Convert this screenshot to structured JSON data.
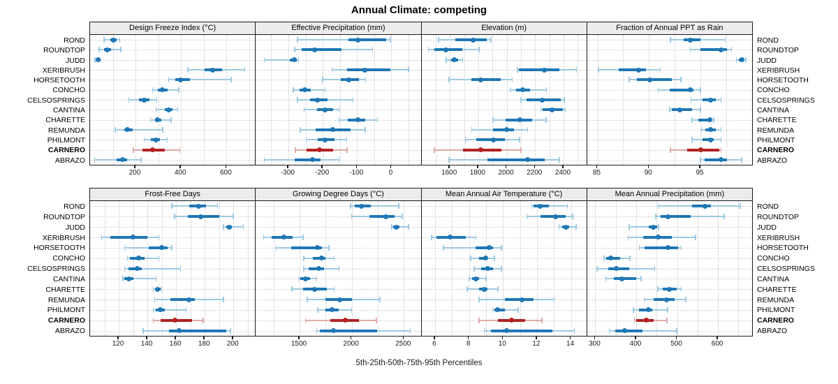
{
  "title": "Annual Climate: competing",
  "caption": "5th-25th-50th-75th-95th Percentiles",
  "colors": {
    "normal": "#1f77b4",
    "normal_light": "#9ec9e2",
    "highlight": "#b22222",
    "highlight_light": "#e0a8a8",
    "grid": "#c6c6c6",
    "panel_border": "#1a1a1a",
    "header_bg": "#ececec"
  },
  "chart_data": {
    "type": "dot-interval percentile chart (5th-25th-50th-75th-95th), 2 rows x 4 panels",
    "percentiles": [
      5,
      25,
      50,
      75,
      95
    ],
    "legend_position": "none",
    "grid": "dotted vertical at minor ticks, dotted horizontal per site row",
    "sites": [
      "ROND",
      "ROUNDTOP",
      "JUDD",
      "XERIBRUSH",
      "HORSETOOTH",
      "CONCHO",
      "CELSOSPRINGS",
      "CANTINA",
      "CHARETTE",
      "REMUNDA",
      "PHILMONT",
      "CARNERO",
      "ABRAZO"
    ],
    "highlight_site": "CARNERO",
    "panels": [
      {
        "title": "Design Freeze Index (°C)",
        "domain": [
          0,
          725
        ],
        "ticks": [
          200,
          400,
          600
        ],
        "grid": [
          100,
          200,
          300,
          400,
          500,
          600,
          700
        ],
        "values": [
          [
            62,
            88,
            103,
            116,
            131
          ],
          [
            40,
            60,
            75,
            92,
            135
          ],
          [
            22,
            28,
            34,
            40,
            48
          ],
          [
            430,
            505,
            540,
            580,
            680
          ],
          [
            345,
            375,
            398,
            440,
            620
          ],
          [
            275,
            297,
            318,
            340,
            390
          ],
          [
            170,
            215,
            238,
            262,
            293
          ],
          [
            290,
            330,
            345,
            362,
            386
          ],
          [
            265,
            285,
            297,
            312,
            357
          ],
          [
            110,
            150,
            165,
            188,
            320
          ],
          [
            238,
            268,
            289,
            306,
            339
          ],
          [
            190,
            230,
            275,
            330,
            395
          ],
          [
            20,
            118,
            143,
            162,
            225
          ]
        ]
      },
      {
        "title": "Effective Precipitation (mm)",
        "domain": [
          -395,
          85
        ],
        "ticks": [
          -300,
          -200,
          -100,
          0
        ],
        "grid": [
          -350,
          -300,
          -250,
          -200,
          -150,
          -100,
          -50,
          0,
          50
        ],
        "values": [
          [
            -273,
            -125,
            -98,
            -15,
            -3
          ],
          [
            -282,
            -262,
            -223,
            -145,
            -55
          ],
          [
            -370,
            -296,
            -283,
            -275,
            -270
          ],
          [
            -173,
            -130,
            -78,
            -2,
            50
          ],
          [
            -200,
            -148,
            -123,
            -95,
            -75
          ],
          [
            -286,
            -268,
            -253,
            -234,
            -193
          ],
          [
            -273,
            -236,
            -215,
            -186,
            -112
          ],
          [
            -254,
            -216,
            -193,
            -170,
            -152
          ],
          [
            -152,
            -128,
            -98,
            -77,
            -41
          ],
          [
            -265,
            -220,
            -170,
            -118,
            -76
          ],
          [
            -248,
            -215,
            -193,
            -165,
            -130
          ],
          [
            -280,
            -248,
            -209,
            -170,
            -129
          ],
          [
            -370,
            -282,
            -229,
            -207,
            -152
          ]
        ]
      },
      {
        "title": "Elevation (m)",
        "domain": [
          1400,
          2560
        ],
        "ticks": [
          1600,
          1800,
          2000,
          2200,
          2400
        ],
        "grid": [
          1500,
          1600,
          1700,
          1800,
          1900,
          2000,
          2100,
          2200,
          2300,
          2400,
          2500
        ],
        "values": [
          [
            1520,
            1640,
            1765,
            1860,
            1890
          ],
          [
            1450,
            1490,
            1572,
            1690,
            1805
          ],
          [
            1575,
            1610,
            1633,
            1660,
            1690
          ],
          [
            2075,
            2085,
            2265,
            2370,
            2490
          ],
          [
            1595,
            1750,
            1820,
            1960,
            2040
          ],
          [
            2025,
            2065,
            2115,
            2165,
            2280
          ],
          [
            2100,
            2140,
            2250,
            2380,
            2405
          ],
          [
            2240,
            2255,
            2318,
            2395,
            2413
          ],
          [
            1905,
            1990,
            2093,
            2180,
            2277
          ],
          [
            1755,
            1905,
            2000,
            2050,
            2148
          ],
          [
            1710,
            1785,
            1907,
            1985,
            2090
          ],
          [
            1490,
            1690,
            1820,
            1965,
            2100
          ],
          [
            1595,
            1865,
            2148,
            2270,
            2370
          ]
        ]
      },
      {
        "title": "Fraction of Annual PPT as Rain",
        "domain": [
          84,
          100
        ],
        "ticks": [
          85,
          90,
          95
        ],
        "grid": [
          85,
          87.5,
          90,
          92.5,
          95,
          97.5
        ],
        "values": [
          [
            92.1,
            93.4,
            94.0,
            95.0,
            97.4
          ],
          [
            94.0,
            95.0,
            97.0,
            97.6,
            98.0
          ],
          [
            98.5,
            98.7,
            99.0,
            99.2,
            99.4
          ],
          [
            85.1,
            87.1,
            89.0,
            89.7,
            91.1
          ],
          [
            88.1,
            88.8,
            90.1,
            92.2,
            93.1
          ],
          [
            90.9,
            92.0,
            94.0,
            94.3,
            95.0
          ],
          [
            94.1,
            95.2,
            96.0,
            96.5,
            97.0
          ],
          [
            92.0,
            92.2,
            93.0,
            94.2,
            95.0
          ],
          [
            94.2,
            94.8,
            95.9,
            96.1,
            96.3
          ],
          [
            95.1,
            95.5,
            96.0,
            96.5,
            97.0
          ],
          [
            94.2,
            95.2,
            96.0,
            96.3,
            97.0
          ],
          [
            92.1,
            93.7,
            95.0,
            96.8,
            97.0
          ],
          [
            95.0,
            95.4,
            97.0,
            97.6,
            99.0
          ]
        ]
      },
      {
        "title": "Frost-Free Days",
        "domain": [
          100,
          215
        ],
        "ticks": [
          120,
          140,
          160,
          180,
          200
        ],
        "grid": [
          110,
          120,
          130,
          140,
          150,
          160,
          170,
          180,
          190,
          200,
          210
        ],
        "values": [
          [
            157,
            169,
            176,
            181,
            189
          ],
          [
            159,
            168,
            177,
            190,
            200
          ],
          [
            193,
            195,
            197,
            199,
            207
          ],
          [
            108,
            114,
            130,
            140,
            148
          ],
          [
            124,
            141,
            150,
            154,
            157
          ],
          [
            126,
            128,
            134,
            138,
            148
          ],
          [
            124,
            127,
            133,
            136,
            163
          ],
          [
            123,
            124,
            127,
            130,
            146
          ],
          [
            144,
            146,
            147,
            149,
            150
          ],
          [
            145,
            156,
            169,
            173,
            193
          ],
          [
            144,
            146,
            149,
            152,
            167
          ],
          [
            144,
            149,
            159,
            171,
            179
          ],
          [
            137,
            155,
            162,
            195,
            198
          ]
        ]
      },
      {
        "title": "Growing Degree Days (°C)",
        "domain": [
          1080,
          2660
        ],
        "ticks": [
          1500,
          2000,
          2500
        ],
        "grid": [
          1250,
          1500,
          1750,
          2000,
          2250,
          2500
        ],
        "values": [
          [
            1990,
            2030,
            2090,
            2185,
            2450
          ],
          [
            2000,
            2170,
            2325,
            2410,
            2485
          ],
          [
            2385,
            2400,
            2425,
            2460,
            2545
          ],
          [
            1155,
            1230,
            1347,
            1433,
            1535
          ],
          [
            1275,
            1420,
            1670,
            1715,
            1780
          ],
          [
            1540,
            1625,
            1710,
            1750,
            1832
          ],
          [
            1540,
            1590,
            1686,
            1736,
            1880
          ],
          [
            1490,
            1510,
            1556,
            1600,
            1665
          ],
          [
            1425,
            1535,
            1646,
            1758,
            1830
          ],
          [
            1575,
            1747,
            1886,
            2005,
            2270
          ],
          [
            1673,
            1747,
            1810,
            1872,
            2000
          ],
          [
            1556,
            1792,
            1938,
            2066,
            2235
          ],
          [
            1665,
            1691,
            1826,
            2241,
            2560
          ]
        ]
      },
      {
        "title": "Mean Annual Air Temperature (°C)",
        "domain": [
          5.2,
          14.9
        ],
        "ticks": [
          6,
          8,
          10,
          12,
          14
        ],
        "grid": [
          6,
          7,
          8,
          9,
          10,
          11,
          12,
          13,
          14
        ],
        "values": [
          [
            11.7,
            11.8,
            12.2,
            12.7,
            13.8
          ],
          [
            11.4,
            12.2,
            13.1,
            13.7,
            14.1
          ],
          [
            13.3,
            13.5,
            13.7,
            13.9,
            14.3
          ],
          [
            5.8,
            6.1,
            6.9,
            7.8,
            8.4
          ],
          [
            6.5,
            8.4,
            9.2,
            9.4,
            9.9
          ],
          [
            8.1,
            8.6,
            9.0,
            9.1,
            9.5
          ],
          [
            8.3,
            8.7,
            9.1,
            9.4,
            9.9
          ],
          [
            8.0,
            8.2,
            8.4,
            8.6,
            9.0
          ],
          [
            7.9,
            8.6,
            8.9,
            9.1,
            9.7
          ],
          [
            8.6,
            10.1,
            11.1,
            11.8,
            13.0
          ],
          [
            9.4,
            9.5,
            9.7,
            10.1,
            10.9
          ],
          [
            8.6,
            9.7,
            10.5,
            11.3,
            12.3
          ],
          [
            8.9,
            9.3,
            10.2,
            12.9,
            14.2
          ]
        ]
      },
      {
        "title": "Mean Annual Precipitation (mm)",
        "domain": [
          280,
          683
        ],
        "ticks": [
          300,
          400,
          500,
          600
        ],
        "grid": [
          300,
          350,
          400,
          450,
          500,
          550,
          600,
          650
        ],
        "values": [
          [
            454,
            536,
            569,
            582,
            654
          ],
          [
            448,
            460,
            478,
            533,
            615
          ],
          [
            383,
            430,
            441,
            452,
            455
          ],
          [
            380,
            417,
            453,
            487,
            545
          ],
          [
            408,
            421,
            478,
            502,
            510
          ],
          [
            321,
            327,
            338,
            361,
            385
          ],
          [
            304,
            332,
            351,
            383,
            445
          ],
          [
            326,
            346,
            365,
            400,
            412
          ],
          [
            453,
            465,
            481,
            499,
            510
          ],
          [
            420,
            443,
            474,
            494,
            521
          ],
          [
            393,
            406,
            429,
            440,
            477
          ],
          [
            396,
            400,
            424,
            443,
            475
          ],
          [
            334,
            349,
            371,
            416,
            499
          ]
        ]
      }
    ]
  }
}
